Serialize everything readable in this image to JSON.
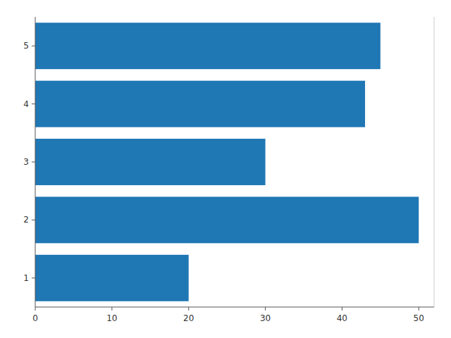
{
  "chart_data": {
    "type": "bar",
    "orientation": "horizontal",
    "categories": [
      1,
      2,
      3,
      4,
      5
    ],
    "values": [
      20,
      50,
      30,
      43,
      45
    ],
    "color": "#1f77b4",
    "xlim": [
      0,
      52
    ],
    "xticks": [
      0,
      10,
      20,
      30,
      40,
      50
    ]
  }
}
